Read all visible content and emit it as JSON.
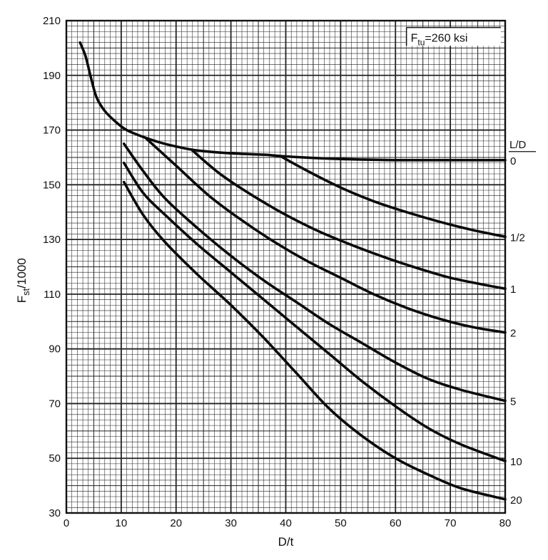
{
  "chart_data": {
    "type": "line",
    "xlabel": "D/t",
    "ylabel_main": "F",
    "ylabel_sub": "st",
    "ylabel_suffix": "/1000",
    "xlim": [
      0,
      80
    ],
    "ylim": [
      30,
      210
    ],
    "grid": true,
    "x_ticks": [
      "0",
      "10",
      "20",
      "30",
      "40",
      "50",
      "60",
      "70",
      "80"
    ],
    "y_ticks": [
      "30",
      "50",
      "70",
      "90",
      "110",
      "130",
      "150",
      "170",
      "190",
      "210"
    ],
    "annotation": {
      "main": "F",
      "sub": "tu",
      "rest": "=260 ksi"
    },
    "legend_title": "L/D",
    "series": [
      {
        "name": "0",
        "points": [
          [
            2.5,
            202
          ],
          [
            3.5,
            197
          ],
          [
            4.5,
            189
          ],
          [
            5.5,
            182
          ],
          [
            7,
            177
          ],
          [
            9,
            173
          ],
          [
            11,
            170
          ],
          [
            14,
            167.5
          ],
          [
            17,
            165.5
          ],
          [
            20,
            164
          ],
          [
            24,
            162.5
          ],
          [
            30,
            161.5
          ],
          [
            36,
            161
          ],
          [
            39,
            160.5
          ],
          [
            45,
            159.8
          ],
          [
            52,
            159.3
          ],
          [
            60,
            159
          ],
          [
            70,
            159
          ],
          [
            80,
            159
          ]
        ]
      },
      {
        "name": "1/2",
        "points": [
          [
            39,
            160.5
          ],
          [
            44,
            155
          ],
          [
            50,
            149
          ],
          [
            56,
            144
          ],
          [
            62,
            140
          ],
          [
            68,
            136.5
          ],
          [
            74,
            133.5
          ],
          [
            80,
            131
          ]
        ]
      },
      {
        "name": "1",
        "points": [
          [
            23,
            162.5
          ],
          [
            28,
            154
          ],
          [
            34,
            146
          ],
          [
            40,
            139
          ],
          [
            46,
            133
          ],
          [
            52,
            128
          ],
          [
            58,
            123.5
          ],
          [
            64,
            119.5
          ],
          [
            70,
            116
          ],
          [
            76,
            113.5
          ],
          [
            80,
            112
          ]
        ]
      },
      {
        "name": "2",
        "points": [
          [
            14.5,
            167
          ],
          [
            20,
            157
          ],
          [
            26,
            146
          ],
          [
            32,
            137
          ],
          [
            38,
            129
          ],
          [
            44,
            122
          ],
          [
            50,
            116
          ],
          [
            56,
            110
          ],
          [
            62,
            105
          ],
          [
            68,
            101
          ],
          [
            74,
            98
          ],
          [
            80,
            96
          ]
        ]
      },
      {
        "name": "5",
        "points": [
          [
            10.5,
            165
          ],
          [
            14,
            155
          ],
          [
            18,
            145
          ],
          [
            24,
            134
          ],
          [
            30,
            124
          ],
          [
            36,
            115
          ],
          [
            42,
            107
          ],
          [
            48,
            99
          ],
          [
            54,
            92
          ],
          [
            60,
            85
          ],
          [
            66,
            79
          ],
          [
            72,
            75
          ],
          [
            80,
            71
          ]
        ]
      },
      {
        "name": "10",
        "points": [
          [
            10.5,
            158
          ],
          [
            14,
            147
          ],
          [
            18,
            139
          ],
          [
            24,
            128
          ],
          [
            30,
            118
          ],
          [
            36,
            108
          ],
          [
            42,
            98
          ],
          [
            48,
            88
          ],
          [
            54,
            78
          ],
          [
            60,
            69
          ],
          [
            66,
            61
          ],
          [
            72,
            55
          ],
          [
            80,
            49
          ]
        ]
      },
      {
        "name": "20",
        "points": [
          [
            10.5,
            151
          ],
          [
            14,
            139
          ],
          [
            18,
            129
          ],
          [
            24,
            117
          ],
          [
            30,
            106
          ],
          [
            36,
            94
          ],
          [
            42,
            81
          ],
          [
            48,
            68
          ],
          [
            54,
            58
          ],
          [
            60,
            50
          ],
          [
            66,
            44
          ],
          [
            72,
            39
          ],
          [
            80,
            35
          ]
        ]
      }
    ]
  }
}
